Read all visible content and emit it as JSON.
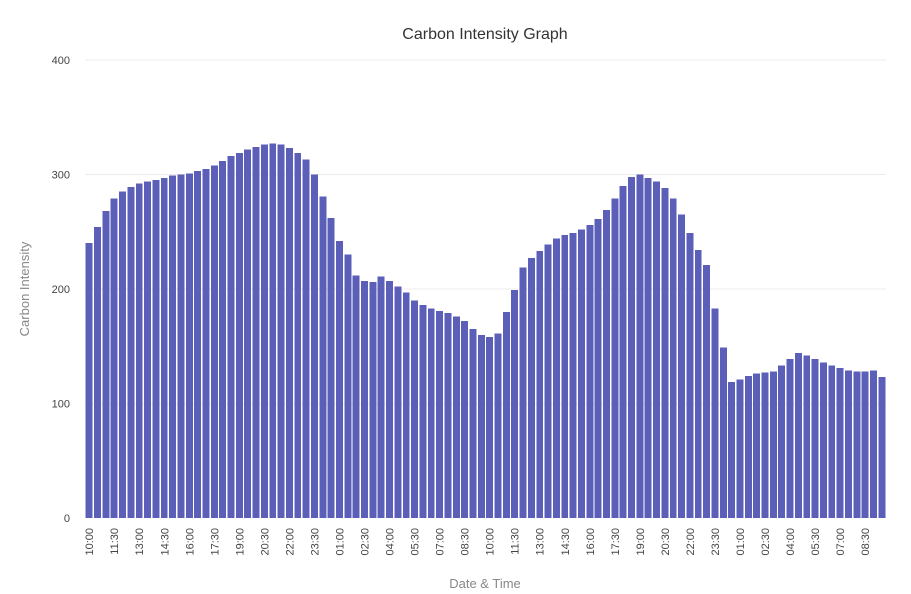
{
  "chart_data": {
    "type": "bar",
    "title": "Carbon Intensity Graph",
    "xlabel": "Date & Time",
    "ylabel": "Carbon Intensity",
    "ylim": [
      0,
      400
    ],
    "yticks": [
      0,
      100,
      200,
      300,
      400
    ],
    "grid": true,
    "bar_color": "#5c5fb8",
    "x_tick_labels": [
      "10:00",
      "11:30",
      "13:00",
      "14:30",
      "16:00",
      "17:30",
      "19:00",
      "20:30",
      "22:00",
      "23:30",
      "01:00",
      "02:30",
      "04:00",
      "05:30",
      "07:00",
      "08:30",
      "10:00",
      "11:30",
      "13:00",
      "14:30",
      "16:00",
      "17:30",
      "19:00",
      "20:30",
      "22:00",
      "23:30",
      "01:00",
      "02:30",
      "04:00",
      "05:30",
      "07:00",
      "08:30"
    ],
    "values": [
      240,
      254,
      268,
      279,
      285,
      289,
      292,
      294,
      295,
      297,
      299,
      300,
      301,
      303,
      305,
      308,
      312,
      316,
      319,
      322,
      324,
      326,
      327,
      326,
      323,
      319,
      313,
      300,
      281,
      262,
      242,
      230,
      212,
      207,
      206,
      211,
      207,
      202,
      197,
      190,
      186,
      183,
      181,
      179,
      176,
      172,
      165,
      160,
      158,
      161,
      180,
      199,
      219,
      227,
      233,
      239,
      244,
      247,
      249,
      252,
      256,
      261,
      269,
      279,
      290,
      298,
      300,
      297,
      294,
      288,
      279,
      265,
      249,
      234,
      221,
      183,
      149,
      119,
      121,
      124,
      126,
      127,
      128,
      133,
      139,
      144,
      142,
      139,
      136,
      133,
      131,
      129,
      128,
      128,
      129,
      123
    ]
  }
}
